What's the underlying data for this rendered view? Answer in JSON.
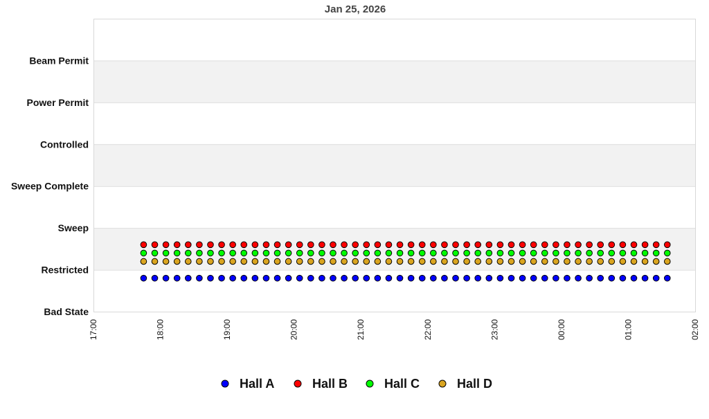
{
  "chart_data": {
    "type": "scatter",
    "title": "Jan 25, 2026",
    "xlabel": "",
    "ylabel": "",
    "x_range": [
      "17:00",
      "02:00"
    ],
    "x_ticks": [
      "17:00",
      "18:00",
      "19:00",
      "20:00",
      "21:00",
      "22:00",
      "23:00",
      "00:00",
      "01:00",
      "02:00"
    ],
    "y_categories": [
      "Bad State",
      "Restricted",
      "Sweep",
      "Sweep Complete",
      "Controlled",
      "Power Permit",
      "Beam Permit"
    ],
    "ylim": [
      0,
      7
    ],
    "grid": true,
    "alternating_bands": true,
    "legend_position": "bottom",
    "x": [
      "17:45",
      "17:55",
      "18:05",
      "18:15",
      "18:25",
      "18:35",
      "18:45",
      "18:55",
      "19:05",
      "19:15",
      "19:25",
      "19:35",
      "19:45",
      "19:55",
      "20:05",
      "20:15",
      "20:25",
      "20:35",
      "20:45",
      "20:55",
      "21:05",
      "21:15",
      "21:25",
      "21:35",
      "21:45",
      "21:55",
      "22:05",
      "22:15",
      "22:25",
      "22:35",
      "22:45",
      "22:55",
      "23:05",
      "23:15",
      "23:25",
      "23:35",
      "23:45",
      "23:55",
      "00:05",
      "00:15",
      "00:25",
      "00:35",
      "00:45",
      "00:55",
      "01:05",
      "01:15",
      "01:25",
      "01:35"
    ],
    "series": [
      {
        "name": "Hall A",
        "color": "#0000ff",
        "values": [
          0.8,
          0.8,
          0.8,
          0.8,
          0.8,
          0.8,
          0.8,
          0.8,
          0.8,
          0.8,
          0.8,
          0.8,
          0.8,
          0.8,
          0.8,
          0.8,
          0.8,
          0.8,
          0.8,
          0.8,
          0.8,
          0.8,
          0.8,
          0.8,
          0.8,
          0.8,
          0.8,
          0.8,
          0.8,
          0.8,
          0.8,
          0.8,
          0.8,
          0.8,
          0.8,
          0.8,
          0.8,
          0.8,
          0.8,
          0.8,
          0.8,
          0.8,
          0.8,
          0.8,
          0.8,
          0.8,
          0.8,
          0.8
        ]
      },
      {
        "name": "Hall B",
        "color": "#ff0000",
        "values": [
          1.6,
          1.6,
          1.6,
          1.6,
          1.6,
          1.6,
          1.6,
          1.6,
          1.6,
          1.6,
          1.6,
          1.6,
          1.6,
          1.6,
          1.6,
          1.6,
          1.6,
          1.6,
          1.6,
          1.6,
          1.6,
          1.6,
          1.6,
          1.6,
          1.6,
          1.6,
          1.6,
          1.6,
          1.6,
          1.6,
          1.6,
          1.6,
          1.6,
          1.6,
          1.6,
          1.6,
          1.6,
          1.6,
          1.6,
          1.6,
          1.6,
          1.6,
          1.6,
          1.6,
          1.6,
          1.6,
          1.6,
          1.6
        ]
      },
      {
        "name": "Hall C",
        "color": "#00ff00",
        "values": [
          1.4,
          1.4,
          1.4,
          1.4,
          1.4,
          1.4,
          1.4,
          1.4,
          1.4,
          1.4,
          1.4,
          1.4,
          1.4,
          1.4,
          1.4,
          1.4,
          1.4,
          1.4,
          1.4,
          1.4,
          1.4,
          1.4,
          1.4,
          1.4,
          1.4,
          1.4,
          1.4,
          1.4,
          1.4,
          1.4,
          1.4,
          1.4,
          1.4,
          1.4,
          1.4,
          1.4,
          1.4,
          1.4,
          1.4,
          1.4,
          1.4,
          1.4,
          1.4,
          1.4,
          1.4,
          1.4,
          1.4,
          1.4
        ]
      },
      {
        "name": "Hall D",
        "color": "#daa520",
        "values": [
          1.2,
          1.2,
          1.2,
          1.2,
          1.2,
          1.2,
          1.2,
          1.2,
          1.2,
          1.2,
          1.2,
          1.2,
          1.2,
          1.2,
          1.2,
          1.2,
          1.2,
          1.2,
          1.2,
          1.2,
          1.2,
          1.2,
          1.2,
          1.2,
          1.2,
          1.2,
          1.2,
          1.2,
          1.2,
          1.2,
          1.2,
          1.2,
          1.2,
          1.2,
          1.2,
          1.2,
          1.2,
          1.2,
          1.2,
          1.2,
          1.2,
          1.2,
          1.2,
          1.2,
          1.2,
          1.2,
          1.2,
          1.2
        ]
      }
    ]
  }
}
